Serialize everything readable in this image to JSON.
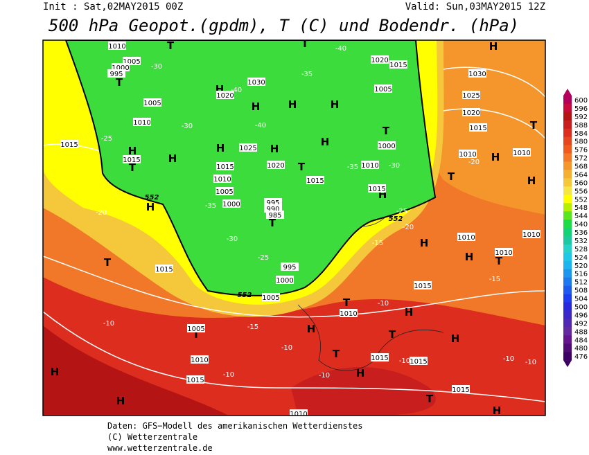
{
  "header": {
    "init": "Init : Sat,02MAY2015 00Z",
    "valid": "Valid: Sun,03MAY2015 12Z",
    "title": "500 hPa Geopot.(gpdm), T (C) und Bodendr. (hPa)"
  },
  "map": {
    "highs": [
      "H",
      "H",
      "H",
      "H",
      "H",
      "H",
      "H",
      "H",
      "H",
      "H",
      "H",
      "H",
      "H",
      "H",
      "H",
      "H",
      "H",
      "H",
      "H",
      "H",
      "H",
      "H",
      "H"
    ],
    "lows": [
      "T",
      "T",
      "T",
      "T",
      "T",
      "T",
      "T",
      "T",
      "T",
      "T",
      "T",
      "T",
      "T",
      "T",
      "T",
      "T"
    ],
    "isobars": [
      "1010",
      "1005",
      "1000",
      "995",
      "1005",
      "1010",
      "1015",
      "1015",
      "1030",
      "1020",
      "1025",
      "1020",
      "1015",
      "1015",
      "1010",
      "1005",
      "1000",
      "995",
      "990",
      "985",
      "1000",
      "995",
      "1005",
      "1020",
      "1015",
      "1005",
      "1000",
      "1010",
      "1015",
      "1030",
      "1025",
      "1020",
      "1015",
      "1010",
      "1010",
      "1010",
      "1010",
      "1010",
      "1015",
      "1015",
      "1010",
      "1005",
      "1010",
      "1015",
      "1015",
      "1015",
      "1015",
      "1010"
    ],
    "temperatures": [
      "-40",
      "-35",
      "-30",
      "-25",
      "-20",
      "-25",
      "-30",
      "-35",
      "-20",
      "-25",
      "-15",
      "-15",
      "-10",
      "-15",
      "-10",
      "-10",
      "-10",
      "-10",
      "-10",
      "-10",
      "-10",
      "-20",
      "-30",
      "-35",
      "-40",
      "-40",
      "-30"
    ],
    "contour_552": [
      "552",
      "552",
      "552"
    ]
  },
  "colorbar": {
    "values": [
      600,
      596,
      592,
      588,
      584,
      580,
      576,
      572,
      568,
      564,
      560,
      556,
      552,
      548,
      544,
      540,
      536,
      532,
      528,
      524,
      520,
      516,
      512,
      508,
      504,
      500,
      496,
      492,
      488,
      484,
      480,
      476
    ],
    "colors": [
      "#b4005a",
      "#c80a3c",
      "#b41414",
      "#c81e1e",
      "#dc2d1e",
      "#e6461e",
      "#f05a1e",
      "#f57828",
      "#f5962d",
      "#f5af32",
      "#f5c83c",
      "#f5e646",
      "#ffff00",
      "#b4f000",
      "#5ae61e",
      "#1edc46",
      "#14d278",
      "#1ec8a0",
      "#28d2c8",
      "#1ec8e6",
      "#1eb4f0",
      "#1e96f0",
      "#1e78f0",
      "#1e5af0",
      "#1e3cf0",
      "#2828dc",
      "#3c28c8",
      "#5028b4",
      "#6428a0",
      "#64148c",
      "#500a78",
      "#3c0064"
    ]
  },
  "footer": {
    "source": "Daten: GFS−Modell des amerikanischen Wetterdienstes",
    "copyright": "(C) Wetterzentrale",
    "url": "www.wetterzentrale.de"
  }
}
